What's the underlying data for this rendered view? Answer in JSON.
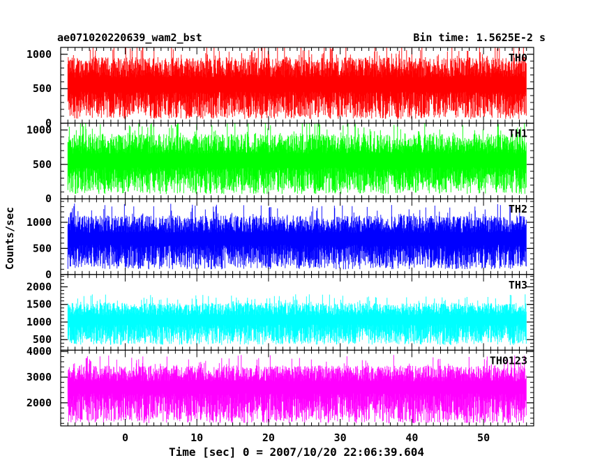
{
  "chart_data": {
    "type": "line",
    "title_left": "ae071020220639_wam2_bst",
    "title_right": "Bin time: 1.5625E-2 s",
    "xlabel": "Time [sec] 0 = 2007/10/20 22:06:39.604",
    "ylabel": "Counts/sec",
    "xlim": [
      -9,
      57
    ],
    "x_ticks": [
      0,
      10,
      20,
      30,
      40,
      50
    ],
    "x_data_range": [
      -8,
      56
    ],
    "grid": false,
    "panels": [
      {
        "name": "TH0",
        "color": "#ff0000",
        "ylim": [
          0,
          1100
        ],
        "yticks": [
          0,
          500,
          1000
        ],
        "mean": 500,
        "spread": 270,
        "floor": 60
      },
      {
        "name": "TH1",
        "color": "#00ff00",
        "ylim": [
          0,
          1100
        ],
        "yticks": [
          0,
          500,
          1000
        ],
        "mean": 500,
        "spread": 260,
        "floor": 70
      },
      {
        "name": "TH2",
        "color": "#0000ff",
        "ylim": [
          0,
          1450
        ],
        "yticks": [
          0,
          500,
          1000
        ],
        "mean": 620,
        "spread": 300,
        "floor": 100
      },
      {
        "name": "TH3",
        "color": "#00ffff",
        "ylim": [
          200,
          2350
        ],
        "yticks": [
          500,
          1000,
          1500,
          2000
        ],
        "mean": 1000,
        "spread": 320,
        "floor": 350
      },
      {
        "name": "TH0123",
        "color": "#ff00ff",
        "ylim": [
          1100,
          4050
        ],
        "yticks": [
          2000,
          3000,
          4000
        ],
        "mean": 2500,
        "spread": 560,
        "floor": 1200
      }
    ]
  }
}
